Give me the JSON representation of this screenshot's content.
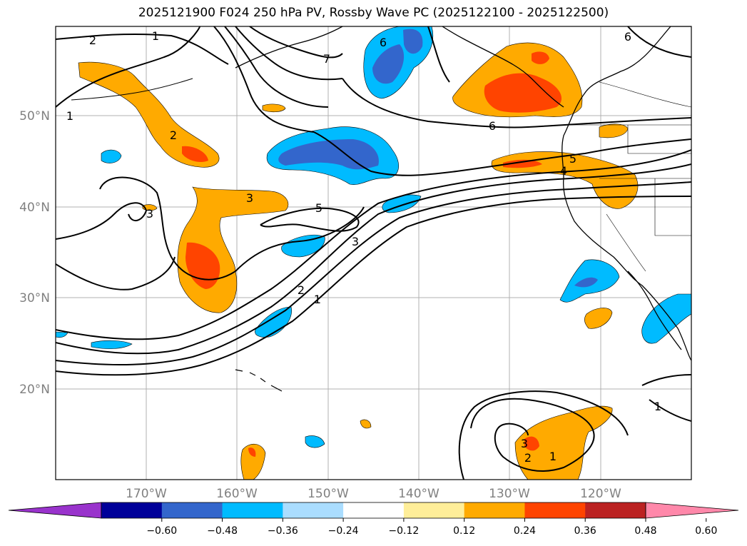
{
  "title": "2025121900 F024 250 hPa PV, Rossby Wave PC (2025122100 - 2025122500)",
  "longitude_ticks": [
    "170°W",
    "160°W",
    "150°W",
    "140°W",
    "130°W",
    "120°W"
  ],
  "latitude_ticks": [
    "50°N",
    "40°N",
    "30°N",
    "20°N"
  ],
  "contour_labels": [
    "2",
    "1",
    "7",
    "6",
    "6",
    "1",
    "2",
    "3",
    "5",
    "3",
    "2",
    "1",
    "6",
    "5",
    "4",
    "3",
    "1",
    "3",
    "2",
    "1"
  ],
  "colorbar": {
    "colors": [
      "#9933cc",
      "#000099",
      "#3366cc",
      "#00bbff",
      "#aaddff",
      "#ffffff",
      "#ffee99",
      "#ffaa00",
      "#ff4400",
      "#bb2222",
      "#ff88aa"
    ],
    "labels": [
      "−0.60",
      "−0.48",
      "−0.36",
      "−0.24",
      "−0.12",
      "0.12",
      "0.24",
      "0.36",
      "0.48",
      "0.60"
    ]
  },
  "colors": {
    "orange": "#ffaa00",
    "red_orange": "#ff4400",
    "light_yellow": "#ffee99",
    "cyan": "#00bbff",
    "blue": "#3366cc",
    "light_blue": "#aaddff"
  }
}
